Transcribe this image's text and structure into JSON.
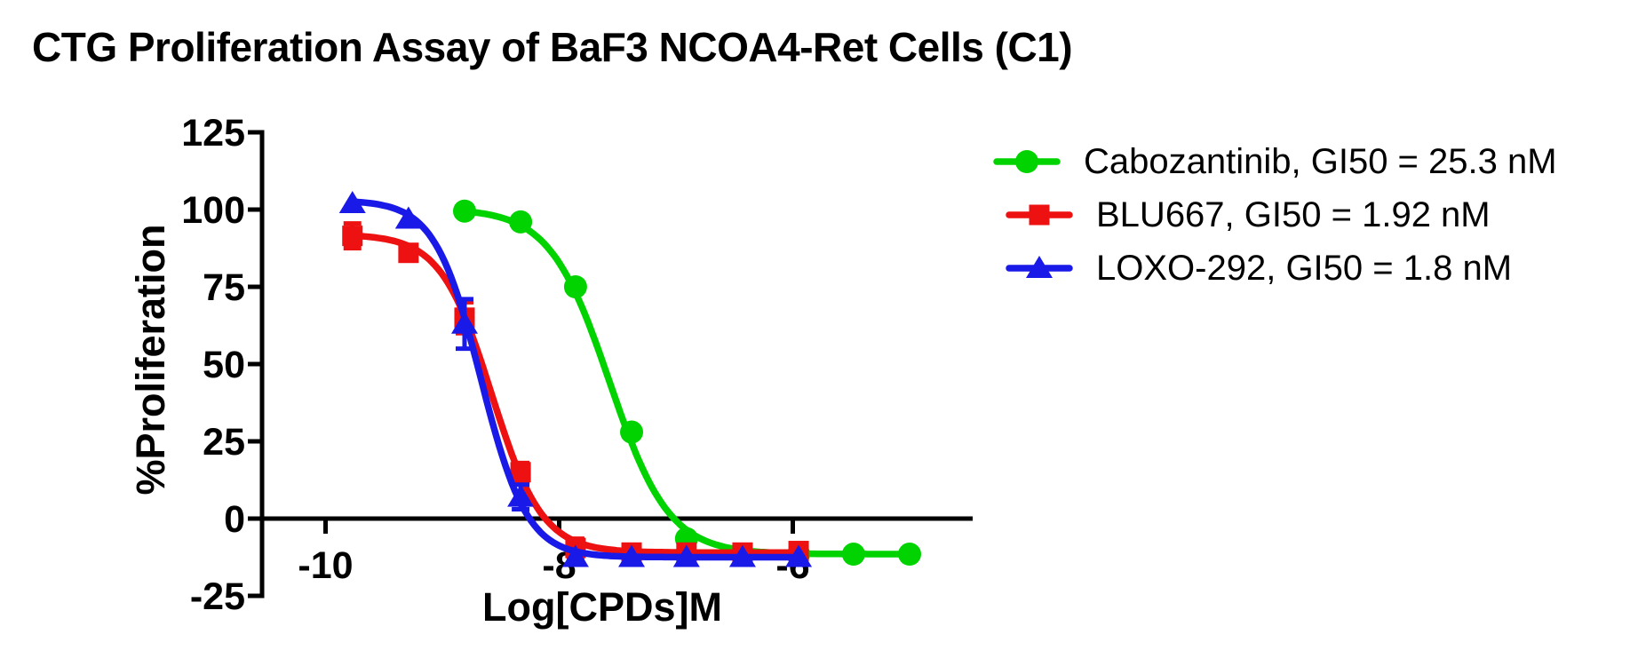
{
  "chart_data": {
    "type": "line",
    "title": "CTG Proliferation Assay of BaF3 NCOA4-Ret Cells (C1)",
    "xlabel": "Log[CPDs]M",
    "ylabel": "%Proliferation",
    "x_ticks": [
      -10,
      -8,
      -6
    ],
    "y_ticks": [
      -25,
      0,
      25,
      50,
      75,
      100,
      125
    ],
    "xlim": [
      -10.55,
      -4.45
    ],
    "ylim": [
      -25,
      125
    ],
    "grid": false,
    "legend_position": "right",
    "axis_color": "#000000",
    "curve_style": "four-parameter-logistic",
    "series": [
      {
        "name": "Cabozantinib, GI50 = 25.3 nM",
        "marker": "circle",
        "color": "#00D300",
        "x": [
          -8.81,
          -8.33,
          -7.86,
          -7.38,
          -6.91,
          -6.43,
          -5.95,
          -5.48,
          -5.0
        ],
        "y": [
          99.5,
          96,
          75,
          28,
          -6.5,
          -11.5,
          -11.5,
          -11.5,
          -11.5
        ],
        "yerr": [
          0,
          0,
          0,
          0,
          0,
          0,
          0,
          0,
          0
        ],
        "fit": {
          "top": 100.3,
          "bottom": -11.5,
          "log_gi50": -7.57,
          "hill": 1.7
        }
      },
      {
        "name": "BLU667, GI50 = 1.92 nM",
        "marker": "square",
        "color": "#EE1111",
        "x": [
          -9.77,
          -9.29,
          -8.81,
          -8.33,
          -7.86,
          -7.38,
          -6.91,
          -6.43,
          -5.95
        ],
        "y": [
          91.5,
          86,
          65,
          15,
          -9.5,
          -11,
          -11,
          -11,
          -10.5
        ],
        "yerr": [
          4,
          0,
          5,
          3,
          3,
          0,
          0,
          0,
          0
        ],
        "fit": {
          "top": 92,
          "bottom": -11,
          "log_gi50": -8.58,
          "hill": 2.0
        }
      },
      {
        "name": "LOXO-292, GI50 = 1.8 nM",
        "marker": "triangle",
        "color": "#1A1AE8",
        "x": [
          -9.77,
          -9.29,
          -8.81,
          -8.33,
          -7.86,
          -7.38,
          -6.91,
          -6.43,
          -5.95
        ],
        "y": [
          102,
          97,
          63,
          7,
          -12.5,
          -12.5,
          -12.5,
          -12.5,
          -12.5
        ],
        "yerr": [
          0,
          0,
          8,
          4,
          0,
          0,
          0,
          0,
          0
        ],
        "fit": {
          "top": 103,
          "bottom": -12.5,
          "log_gi50": -8.67,
          "hill": 2.2
        }
      }
    ]
  }
}
